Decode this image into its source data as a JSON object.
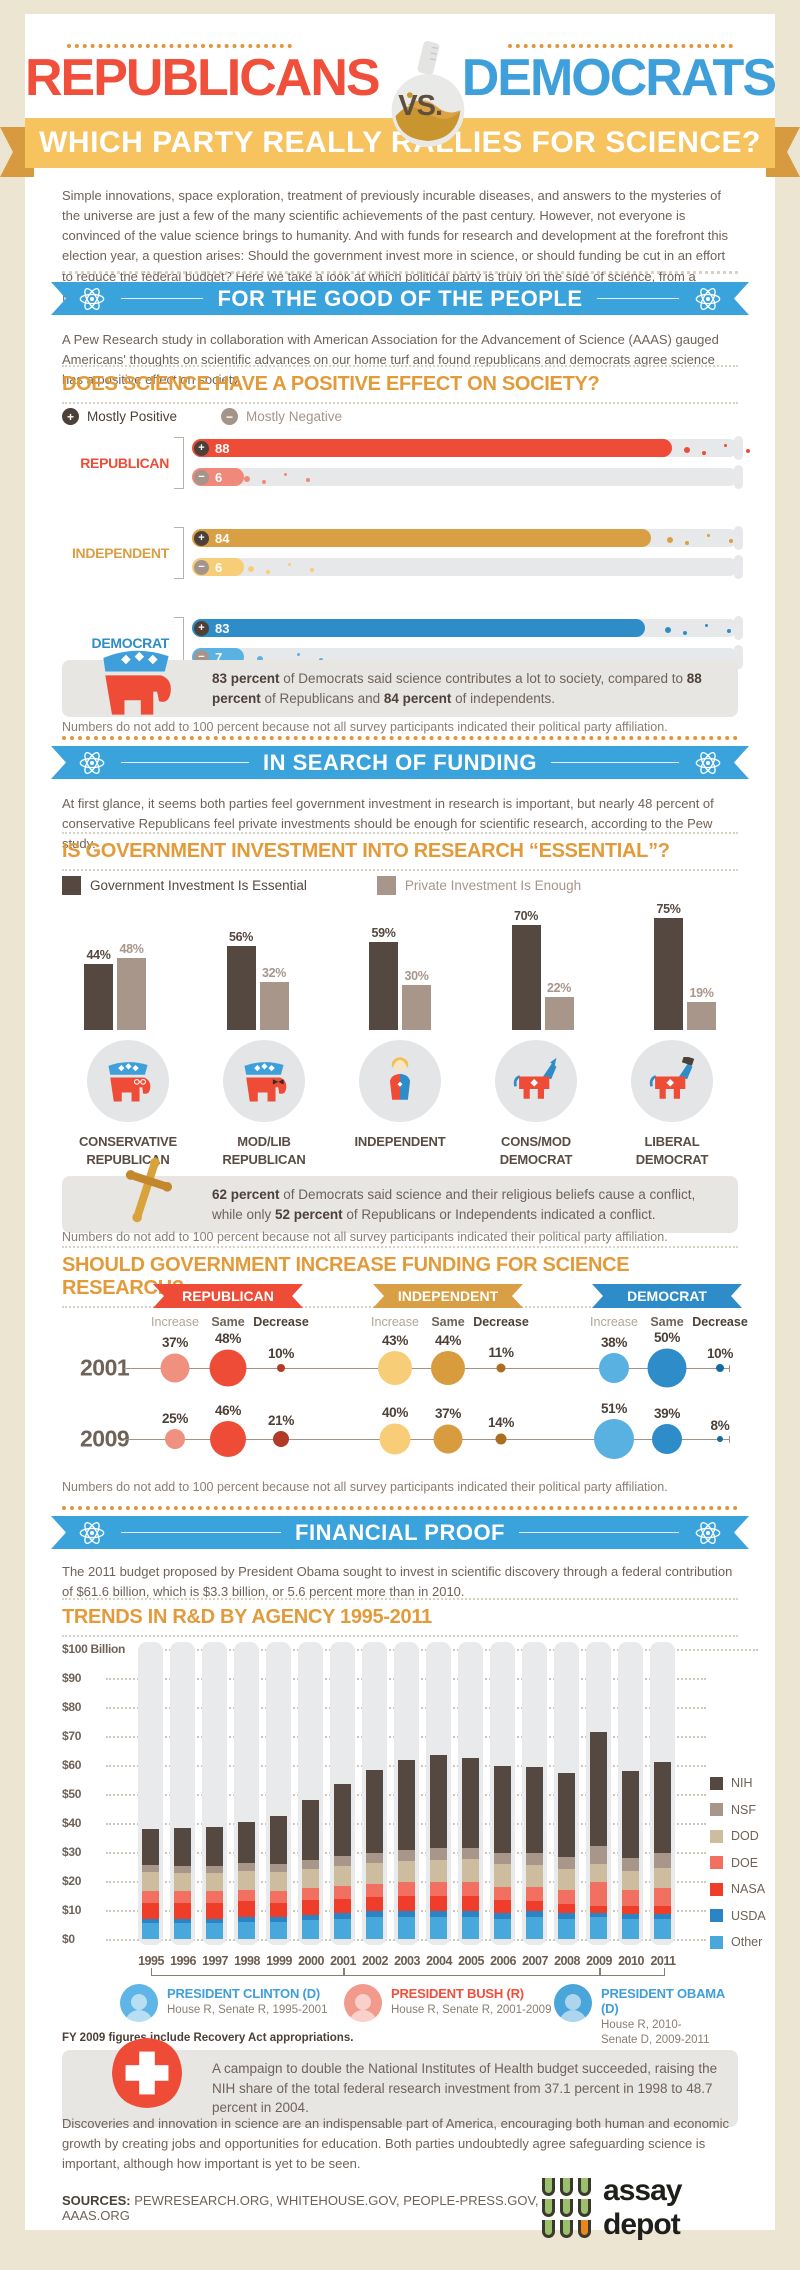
{
  "header": {
    "title_left": "REPUBLICANS",
    "vs": "VS.",
    "title_right": "DEMOCRATS",
    "ribbon": "WHICH PARTY REALLY RALLIES FOR SCIENCE?"
  },
  "banners": {
    "good_of_people": "FOR THE GOOD OF THE PEOPLE",
    "in_search": "IN SEARCH OF FUNDING",
    "financial": "FINANCIAL PROOF"
  },
  "texts": {
    "intro": "Simple innovations, space exploration, treatment of previously incurable diseases, and answers to the mysteries of the universe are just a few of the many scientific achievements of the past century. However, not everyone is convinced of the value science brings to humanity. And with funds for research and development at the forefront this election year, a question arises: Should the government invest more in science, or should funding be cut in an effort to reduce the federal budget? Here we take a look at which political party is truly on the side of science, from a financial perspective.",
    "pew": "A Pew Research study in collaboration with American Association for the Advancement of Science (AAAS) gauged Americans' thoughts on scientific advances on our home turf and found republicans and democrats agree science has a positive effect on society.",
    "survey_note": "Numbers do not add to 100 percent because not all survey participants indicated their political party affiliation.",
    "funding_intro": "At first glance, it seems both parties feel government investment in research is important, but nearly 48 percent of conservative Republicans feel private investments should be enough for scientific research, according to the Pew study.",
    "budget": "The 2011 budget proposed by President Obama sought to invest in scientific discovery through a federal contribution of $61.6 billion, which is $3.3 billion, or 5.6 percent more than in 2010.",
    "fy_note": "FY 2009 figures include Recovery Act appropriations.",
    "closing": "Discoveries and innovation in science are an indispensable part of America, encouraging both human and economic growth by creating jobs and opportunities for education. Both parties undoubtedly agree safeguarding science is important, although how important is yet to be seen."
  },
  "callouts": {
    "positive": [
      [
        "83 percent",
        true
      ],
      [
        " of Democrats said science contributes a lot to society, compared to ",
        false
      ],
      [
        "88 percent",
        true
      ],
      [
        " of Republicans and ",
        false
      ],
      [
        "84 percent",
        true
      ],
      [
        " of independents.",
        false
      ]
    ],
    "religion": [
      [
        "62 percent",
        true
      ],
      [
        " of Democrats said science and their religious beliefs cause a conflict, while only ",
        false
      ],
      [
        "52 percent",
        true
      ],
      [
        " of Republicans or Independents indicated a conflict.",
        false
      ]
    ],
    "nih": [
      [
        "A campaign to double the National Institutes of Health budget succeeded, raising the NIH share of the total federal research investment from 37.1 percent in 1998 to 48.7 percent in 2004.",
        false
      ]
    ]
  },
  "presidents": [
    {
      "name": "PRESIDENT CLINTON (D)",
      "color": "#3f9fdb",
      "avatar": "#5fb5e5",
      "detail": "House R, Senate R, 1995-2001",
      "years": [
        1995,
        2001
      ]
    },
    {
      "name": "PRESIDENT BUSH (R)",
      "color": "#f04f3b",
      "avatar": "#f29a8b",
      "detail": "House R, Senate R, 2001-2009",
      "years": [
        2001,
        2009
      ]
    },
    {
      "name": "PRESIDENT OBAMA (D)",
      "color": "#3f9fdb",
      "avatar": "#4aa5da",
      "detail": "House R, 2010-\nSenate D, 2009-2011",
      "years": [
        2009,
        2011
      ]
    }
  ],
  "footer": {
    "sources_label": "SOURCES:",
    "sources": "PEWRESEARCH.ORG, WHITEHOUSE.GOV, PEOPLE-PRESS.GOV, AAAS.ORG",
    "logo_text": "assay depot"
  },
  "chart_data": [
    {
      "id": "positive_effect",
      "type": "bar",
      "title": "DOES SCIENCE HAVE A POSITIVE EFFECT ON SOCIETY?",
      "legend": [
        "Mostly Positive",
        "Mostly Negative"
      ],
      "xlim": [
        0,
        100
      ],
      "groups": [
        {
          "label": "REPUBLICAN",
          "color": "#ee4c37",
          "color_light": "#f0897a",
          "positive": 88,
          "negative": 6
        },
        {
          "label": "INDEPENDENT",
          "color": "#d99f44",
          "color_light": "#f7cd78",
          "positive": 84,
          "negative": 6
        },
        {
          "label": "DEMOCRAT",
          "color": "#2e8cc8",
          "color_light": "#5ab2e2",
          "positive": 83,
          "negative": 7
        }
      ]
    },
    {
      "id": "essential",
      "type": "bar",
      "title": "IS GOVERNMENT INVESTMENT INTO RESEARCH “ESSENTIAL”?",
      "ylim": [
        0,
        100
      ],
      "categories": [
        "CONSERVATIVE\nREPUBLICAN",
        "MOD/LIB\nREPUBLICAN",
        "INDEPENDENT",
        "CONS/MOD\nDEMOCRAT",
        "LIBERAL\nDEMOCRAT"
      ],
      "icons": [
        "elephant-glasses-icon",
        "elephant-bowtie-icon",
        "independent-person-icon",
        "donkey-icon",
        "donkey-hat-icon"
      ],
      "series": [
        {
          "name": "Government Investment Is Essential",
          "color": "#554840",
          "values": [
            44,
            56,
            59,
            70,
            75
          ]
        },
        {
          "name": "Private Investment Is Enough",
          "color": "#a8968b",
          "values": [
            48,
            32,
            30,
            22,
            19
          ]
        }
      ]
    },
    {
      "id": "funding_increase",
      "type": "bubble",
      "title": "SHOULD GOVERNMENT INCREASE FUNDING FOR SCIENCE RESEARCH?",
      "columns": [
        "Increase",
        "Same",
        "Decrease"
      ],
      "parties": [
        {
          "name": "REPUBLICAN",
          "ribbon_color": "#ee4c37",
          "bubble_colors": [
            "#f0907f",
            "#ee4c37",
            "#b23a27"
          ]
        },
        {
          "name": "INDEPENDENT",
          "ribbon_color": "#d99f44",
          "bubble_colors": [
            "#f7cd78",
            "#d89c3f",
            "#a9701f"
          ]
        },
        {
          "name": "DEMOCRAT",
          "ribbon_color": "#2e8cc8",
          "bubble_colors": [
            "#58b1e1",
            "#2e8cc8",
            "#17699f"
          ]
        }
      ],
      "rows": [
        {
          "year": "2001",
          "values": [
            [
              37,
              48,
              10
            ],
            [
              43,
              44,
              11
            ],
            [
              38,
              50,
              10
            ]
          ]
        },
        {
          "year": "2009",
          "values": [
            [
              25,
              46,
              21
            ],
            [
              40,
              37,
              14
            ],
            [
              51,
              39,
              8
            ]
          ]
        }
      ]
    },
    {
      "id": "rnd_trends",
      "type": "stacked-bar",
      "title": "TRENDS IN R&D BY AGENCY 1995-2011",
      "ylim": [
        0,
        100
      ],
      "ytick_step": 10,
      "ytick_top_label": "$100 Billion",
      "categories": [
        1995,
        1996,
        1997,
        1998,
        1999,
        2000,
        2001,
        2002,
        2003,
        2004,
        2005,
        2006,
        2007,
        2008,
        2009,
        2010,
        2011
      ],
      "legend_order": [
        "NIH",
        "NSF",
        "DOD",
        "DOE",
        "NASA",
        "USDA",
        "Other"
      ],
      "series": [
        {
          "name": "Other",
          "color": "#49a8db",
          "values": [
            5.5,
            5.5,
            5.5,
            6,
            6,
            6.5,
            7,
            7.5,
            7.5,
            7.5,
            7.5,
            7,
            7.5,
            7,
            7.5,
            7,
            7
          ]
        },
        {
          "name": "USDA",
          "color": "#2b85c4",
          "values": [
            1.5,
            1.5,
            1.5,
            1.5,
            1.5,
            1.8,
            1.8,
            2,
            2,
            2,
            2,
            2,
            2,
            2,
            1.5,
            1.5,
            1.5
          ]
        },
        {
          "name": "NASA",
          "color": "#ee3d28",
          "values": [
            5.5,
            5.5,
            5.5,
            5.5,
            5,
            5,
            5,
            5,
            5.5,
            5.5,
            5.5,
            4.5,
            3.5,
            3,
            2.5,
            3,
            3
          ]
        },
        {
          "name": "DOE",
          "color": "#f2705f",
          "values": [
            4,
            4,
            4,
            4,
            4,
            4.2,
            4.5,
            4.5,
            4.5,
            4.5,
            4.5,
            4.5,
            5,
            5,
            8,
            5.5,
            6
          ]
        },
        {
          "name": "DOD",
          "color": "#cdbd9e",
          "values": [
            6.5,
            6.3,
            6.3,
            6.5,
            6.5,
            6.8,
            7,
            7.2,
            7.5,
            7.8,
            8,
            7.7,
            7.5,
            7,
            6.5,
            6.5,
            7
          ]
        },
        {
          "name": "NSF",
          "color": "#a8968b",
          "values": [
            2.5,
            2.5,
            2.5,
            2.7,
            2.8,
            3,
            3.3,
            3.5,
            3.8,
            4,
            4,
            4,
            4.2,
            4.2,
            6,
            4.5,
            5
          ]
        },
        {
          "name": "NIH",
          "color": "#554840",
          "values": [
            12.5,
            13,
            13.5,
            14,
            16.5,
            20.5,
            25,
            28.5,
            31,
            32,
            31,
            30,
            29.5,
            29,
            39.5,
            30,
            31.5
          ]
        }
      ]
    }
  ]
}
